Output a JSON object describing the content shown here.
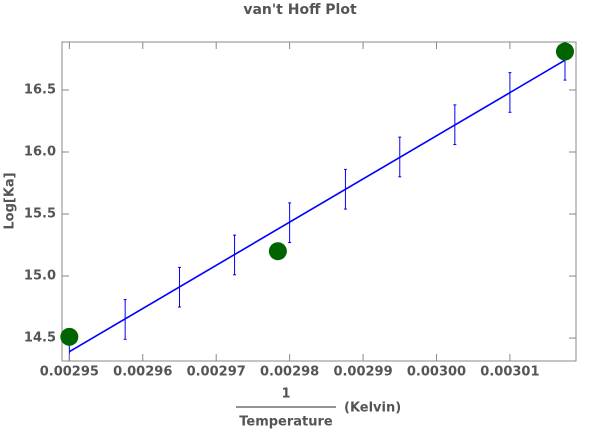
{
  "chart_data": {
    "type": "scatter",
    "title": "van't Hoff Plot",
    "xlabel": {
      "numerator": "1",
      "denominator": "Temperature",
      "unit": "(Kelvin)"
    },
    "ylabel": "Log[Ka]",
    "series": [
      {
        "color": "#006400",
        "x": [
          0.00295,
          0.0029784,
          0.0030175
        ],
        "values": [
          14.51,
          15.2,
          16.81
        ]
      }
    ],
    "fit_line": {
      "color": "#0000ff",
      "x": [
        0.00295,
        0.0030175
      ],
      "values": [
        14.39,
        16.74
      ]
    },
    "error_bars": {
      "color": "#0000ff",
      "x": [
        0.00295,
        0.0029576,
        0.002965,
        0.0029725,
        0.00298,
        0.0029876,
        0.002995,
        0.0030025,
        0.00301,
        0.0030175
      ],
      "values": [
        14.39,
        14.65,
        14.91,
        15.17,
        15.43,
        15.7,
        15.96,
        16.22,
        16.48,
        16.74
      ],
      "errors": [
        0.16,
        0.16,
        0.16,
        0.16,
        0.16,
        0.16,
        0.16,
        0.16,
        0.16,
        0.16
      ]
    },
    "xlim": [
      0.002949,
      0.003019
    ],
    "ylim": [
      14.315,
      16.887
    ],
    "xticks": [
      0.00295,
      0.00296,
      0.00297,
      0.00298,
      0.00299,
      {
        "value": 0.003,
        "label": "0.00300"
      },
      0.00301
    ],
    "yticks": [
      14.5,
      {
        "value": 15,
        "label": "15.0"
      },
      15.5,
      {
        "value": 16,
        "label": "16.0"
      },
      16.5
    ]
  }
}
